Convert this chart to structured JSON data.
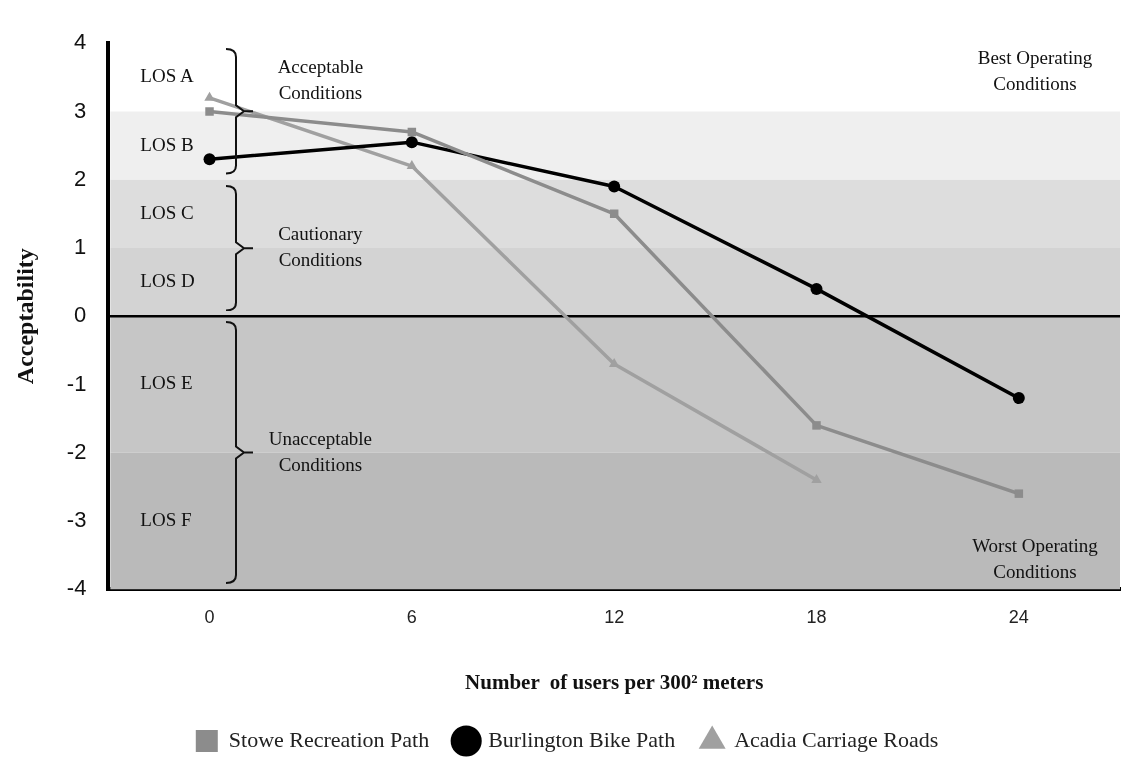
{
  "chart_data": {
    "type": "line",
    "xlabel": "Number  of users per 300² meters",
    "ylabel": "Acceptability",
    "categories": [
      "0",
      "6",
      "12",
      "18",
      "24"
    ],
    "series": [
      {
        "name": "Stowe Recreation Path",
        "color": "#8c8c8c",
        "marker": "square",
        "values": [
          3.0,
          2.7,
          1.5,
          -1.6,
          -2.6
        ]
      },
      {
        "name": "Burlington Bike Path",
        "color": "#000000",
        "marker": "circle",
        "values": [
          2.3,
          2.55,
          1.9,
          0.4,
          -1.2
        ]
      },
      {
        "name": "Acadia Carriage Roads",
        "color": "#a0a0a0",
        "marker": "triangle",
        "values": [
          3.2,
          2.2,
          -0.7,
          -2.4,
          null
        ]
      }
    ],
    "ylim": [
      -4,
      4
    ],
    "yticks": [
      -4,
      -3,
      -2,
      -1,
      0,
      1,
      2,
      3,
      4
    ],
    "grid": false,
    "legend": "bottom",
    "line_style": "solid",
    "ref_lines": [
      {
        "axis": "y",
        "value": 0,
        "color": "#000000"
      }
    ],
    "bands": [
      {
        "axis": "y",
        "from": 2,
        "to": 3,
        "label": "LOS B",
        "color": "#efefef"
      },
      {
        "axis": "y",
        "from": 1,
        "to": 2,
        "label": "LOS C",
        "color": "#dddddd"
      },
      {
        "axis": "y",
        "from": 0,
        "to": 1,
        "label": "LOS D",
        "color": "#d3d3d3"
      },
      {
        "axis": "y",
        "from": -2,
        "to": 0,
        "label": "LOS E",
        "color": "#c6c6c6"
      },
      {
        "axis": "y",
        "from": -4,
        "to": -2,
        "label": "LOS F",
        "color": "#bababa"
      }
    ],
    "annotations": [
      "Acceptable Conditions",
      "Cautionary Conditions",
      "Unacceptable Conditions",
      "Best Operating Conditions",
      "Worst Operating Conditions",
      "LOS A"
    ]
  }
}
